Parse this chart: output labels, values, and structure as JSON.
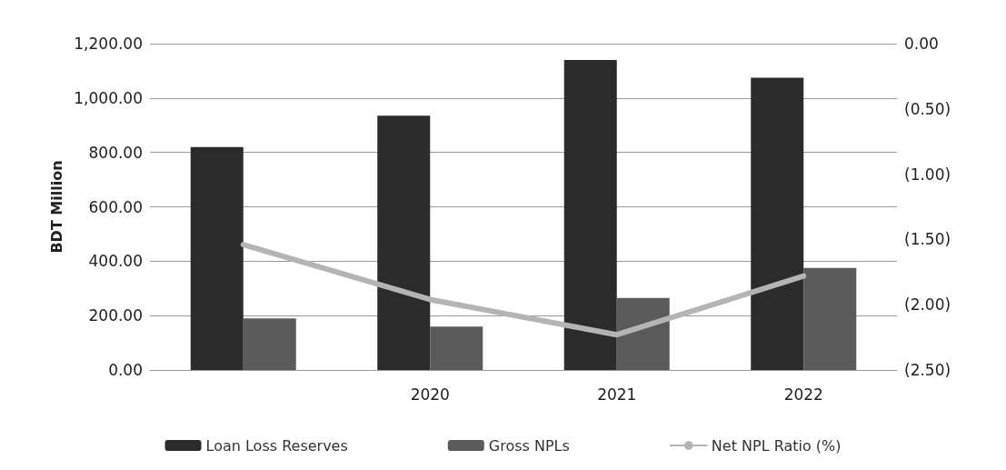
{
  "chart_data": {
    "type": "bar",
    "ylabel": "BDT Million",
    "categories": [
      null,
      "2020",
      "2021",
      "2022"
    ],
    "series": [
      {
        "name": "Loan Loss Reserves",
        "color": "#2b2b2b",
        "values": [
          820,
          935,
          1140,
          1075
        ]
      },
      {
        "name": "Gross NPLs",
        "color": "#5a5a5a",
        "values": [
          190,
          160,
          265,
          375
        ]
      },
      {
        "name": "Net NPL Ratio (%)",
        "type": "line",
        "axis": "y2",
        "color": "#b4b4b4",
        "values": [
          -1.54,
          -1.96,
          -2.23,
          -1.78
        ]
      }
    ],
    "ylim": [
      0,
      1200
    ],
    "yticks": [
      {
        "value": 0,
        "label": "0.00"
      },
      {
        "value": 200,
        "label": "200.00"
      },
      {
        "value": 400,
        "label": "400.00"
      },
      {
        "value": 600,
        "label": "600.00"
      },
      {
        "value": 800,
        "label": "800.00"
      },
      {
        "value": 1000,
        "label": "1,000.00"
      },
      {
        "value": 1200,
        "label": "1,200.00"
      }
    ],
    "y2lim": [
      -2.5,
      0
    ],
    "y2ticks": [
      {
        "value": 0,
        "label": "0.00"
      },
      {
        "value": -0.5,
        "label": "(0.50)"
      },
      {
        "value": -1,
        "label": "(1.00)"
      },
      {
        "value": -1.5,
        "label": "(1.50)"
      },
      {
        "value": -2,
        "label": "(2.00)"
      },
      {
        "value": -2.5,
        "label": "(2.50)"
      }
    ],
    "grid": "y",
    "legend": "bottom"
  }
}
